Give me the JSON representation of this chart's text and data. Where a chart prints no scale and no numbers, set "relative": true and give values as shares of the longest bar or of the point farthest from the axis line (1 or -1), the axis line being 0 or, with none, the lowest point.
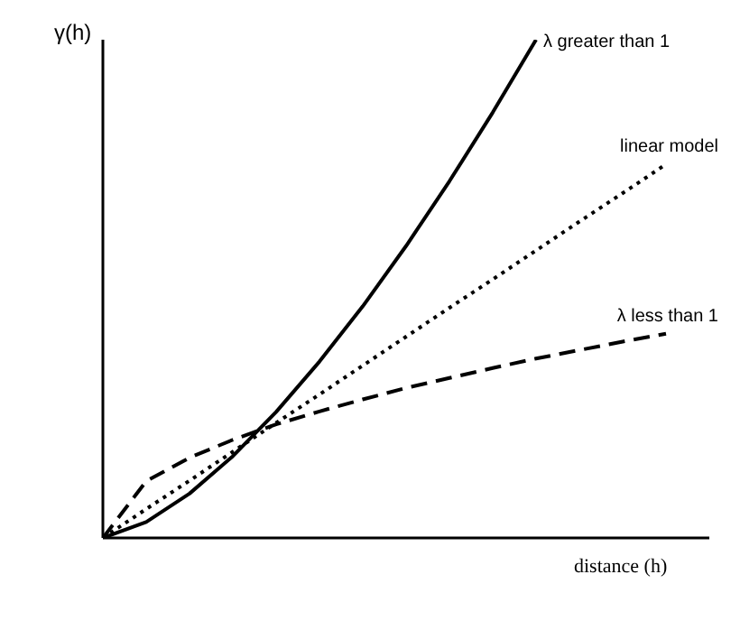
{
  "chart_data": {
    "type": "line",
    "relative": true,
    "xlabel": "distance (h)",
    "ylabel": "γ(h)",
    "categories": [
      null,
      null,
      null,
      null,
      null,
      null,
      null,
      null,
      null,
      null,
      null,
      null,
      null,
      null,
      null
    ],
    "series": [
      {
        "name": "λ greater than 1",
        "color": "#000000",
        "line_style": "solid",
        "values": [
          0,
          0.032,
          0.089,
          0.164,
          0.253,
          0.354,
          0.465,
          0.586,
          0.716,
          0.854,
          1.0,
          null,
          null,
          null,
          null
        ]
      },
      {
        "name": "linear model",
        "color": "#000000",
        "line_style": "dotted",
        "values": [
          0,
          0.058,
          0.115,
          0.173,
          0.231,
          0.288,
          0.346,
          0.404,
          0.462,
          0.519,
          0.577,
          0.635,
          0.692,
          0.75,
          null
        ]
      },
      {
        "name": "λ less than 1",
        "color": "#000000",
        "line_style": "dashed",
        "values": [
          0,
          0.114,
          0.161,
          0.197,
          0.228,
          0.254,
          0.278,
          0.301,
          0.321,
          0.341,
          0.36,
          0.377,
          0.394,
          0.41,
          null
        ]
      }
    ],
    "marker": "none",
    "grid": false,
    "legend": false
  }
}
